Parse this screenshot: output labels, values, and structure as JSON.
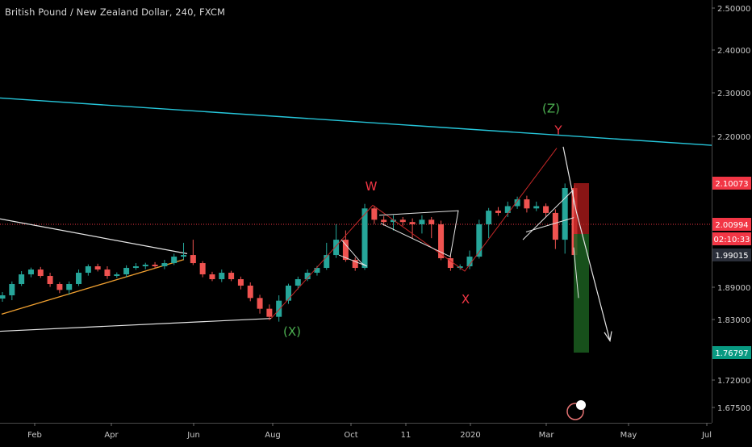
{
  "header": {
    "title": "British Pound / New Zealand Dollar, 240, FXCM"
  },
  "chart_data": {
    "type": "candlestick",
    "symbol": "GBPNZD",
    "ylim": [
      1.63,
      2.52
    ],
    "yticks": [
      2.5,
      2.4,
      2.3,
      2.2,
      1.89,
      1.83,
      1.72,
      1.675
    ],
    "ytick_labels": [
      "2.50000",
      "2.40000",
      "2.30000",
      "2.20000",
      "1.89000",
      "1.83000",
      "1.72000",
      "1.67500"
    ],
    "xticks": [
      "Feb",
      "Apr",
      "Jun",
      "Aug",
      "Oct",
      "11",
      "2020",
      "Mar",
      "May",
      "Jul"
    ],
    "price_badges": [
      {
        "value": 2.10073,
        "label": "2.10073",
        "color": "#f23645"
      },
      {
        "value": 2.00994,
        "label": "2.00994",
        "color": "#f23645"
      },
      {
        "value": 1.99015,
        "label": "1.99015",
        "color": "#2a2e39"
      },
      {
        "value": 1.76797,
        "label": "1.76797",
        "color": "#089981"
      }
    ],
    "countdown": "02:10:33",
    "wave_labels": [
      {
        "text": "(X)",
        "color": "#4caf50",
        "price": 1.8
      },
      {
        "text": "W",
        "color": "#f23645",
        "price": 2.085
      },
      {
        "text": "X",
        "color": "#f23645",
        "price": 1.86
      },
      {
        "text": "Y",
        "color": "#f23645",
        "price": 2.205
      },
      {
        "text": "(Z)",
        "color": "#4caf50",
        "price": 2.255
      }
    ],
    "series": [
      {
        "name": "close",
        "values": [
          1.875,
          1.9,
          1.93,
          1.945,
          1.925,
          1.9,
          1.885,
          1.9,
          1.935,
          1.955,
          1.945,
          1.925,
          1.93,
          1.95,
          1.955,
          1.96,
          1.955,
          1.965,
          1.985,
          1.99,
          1.965,
          1.93,
          1.915,
          1.935,
          1.915,
          1.895,
          1.87,
          1.85,
          1.835,
          1.865,
          1.895,
          1.915,
          1.935,
          1.95,
          1.99,
          2.0,
          1.975,
          1.95,
          2.045,
          2.02,
          2.015,
          2.02,
          2.015,
          2.01,
          2.02,
          2.01,
          1.98,
          1.95,
          1.955,
          1.985,
          2.01,
          2.04,
          2.035,
          2.05,
          2.065,
          2.045,
          2.05,
          2.035,
          2.0,
          2.09,
          1.99
        ]
      }
    ]
  }
}
